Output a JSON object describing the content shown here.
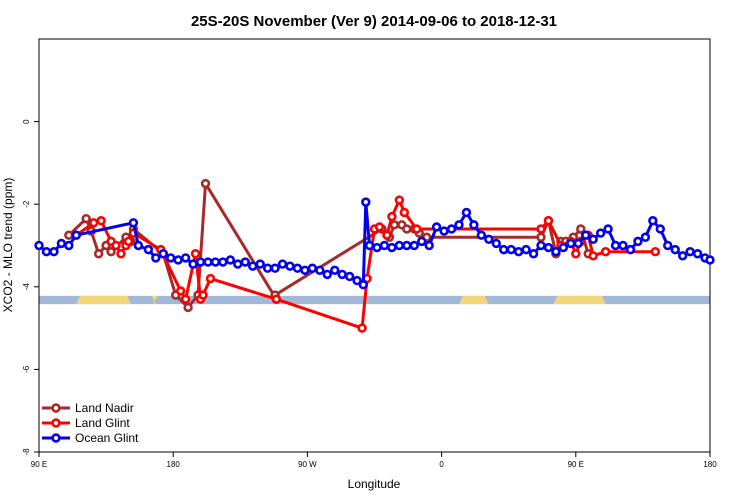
{
  "chart_data": {
    "type": "line",
    "title": "25S-20S November (Ver 9)   2014-09-06 to 2018-12-31",
    "xlabel": "Longitude",
    "ylabel": "XCO2 - MLO trend (ppm)",
    "xlim": [
      -90,
      180
    ],
    "ylim": [
      -8,
      2
    ],
    "x_ticks": [
      {
        "value": -90,
        "label": "90 E"
      },
      {
        "value": -36,
        "label": "180"
      },
      {
        "value": 18,
        "label": "90 W"
      },
      {
        "value": 72,
        "label": "0"
      },
      {
        "value": 126,
        "label": "90 E"
      },
      {
        "value": 180,
        "label": "180"
      }
    ],
    "y_ticks": [
      {
        "value": 0,
        "label": "0"
      },
      {
        "value": -2,
        "label": "-2"
      },
      {
        "value": -4,
        "label": "-4"
      },
      {
        "value": -6,
        "label": "-6"
      },
      {
        "value": -8,
        "label": "-8"
      }
    ],
    "grid": false,
    "legend_position": "bottom-left",
    "land_ocean_strip": {
      "y_range": [
        -4.42,
        -4.22
      ],
      "ocean_color": "#a3b8d8",
      "land_color": "#f5d57a",
      "land_segments": [
        [
          -75,
          -53
        ],
        [
          -44,
          -43
        ],
        [
          79,
          91
        ],
        [
          117,
          138
        ]
      ]
    },
    "series": [
      {
        "name": "Land Nadir",
        "color": "#a52a2a",
        "x": [
          -78,
          -71,
          -69,
          -66,
          -63,
          -61,
          -55,
          -53,
          -52,
          -40,
          -35,
          -30,
          -26,
          -23,
          5.5,
          5,
          48,
          51,
          53,
          56,
          58,
          61,
          63,
          66,
          112,
          115,
          118,
          120,
          122,
          125,
          128,
          131
        ],
        "y": [
          -2.75,
          -2.35,
          -2.65,
          -3.2,
          -3.0,
          -3.15,
          -2.8,
          -2.9,
          -2.6,
          -3.2,
          -4.2,
          -4.5,
          -4.2,
          -1.5,
          -4.3,
          -4.2,
          -2.6,
          -2.8,
          -2.5,
          -2.5,
          -2.6,
          -2.6,
          -2.7,
          -2.8,
          -2.8,
          -2.4,
          -3.2,
          -2.9,
          -2.9,
          -2.8,
          -2.6,
          -3.2
        ]
      },
      {
        "name": "Land Glint",
        "color": "#ff0000",
        "x": [
          -75,
          -68,
          -65,
          -61,
          -59,
          -57,
          -55,
          -54,
          -52,
          -41,
          -33,
          -31,
          -27,
          -25,
          -24,
          -21,
          5.5,
          40,
          42,
          45,
          47,
          50,
          52,
          55,
          57,
          62,
          112,
          115,
          120,
          124,
          126,
          128,
          131,
          133,
          138,
          158
        ],
        "y": [
          -2.75,
          -2.45,
          -2.4,
          -2.9,
          -3.0,
          -3.2,
          -3.0,
          -2.9,
          -2.7,
          -3.1,
          -4.1,
          -4.3,
          -3.2,
          -4.3,
          -4.2,
          -3.8,
          -4.3,
          -5.0,
          -3.8,
          -2.6,
          -2.55,
          -2.75,
          -2.3,
          -1.9,
          -2.2,
          -2.6,
          -2.6,
          -2.4,
          -3.0,
          -2.9,
          -3.2,
          -2.9,
          -2.75,
          -3.25,
          -3.15,
          -3.15
        ]
      },
      {
        "name": "Ocean Glint",
        "color": "#0000ee",
        "x": [
          -90,
          -87,
          -84,
          -81,
          -78,
          -75,
          -52,
          -50,
          -46,
          -43,
          -40,
          -37,
          -34,
          -31,
          -28,
          -25,
          -22,
          -19,
          -16,
          -13,
          -10,
          -7,
          -4,
          -1,
          2,
          5,
          8,
          11,
          14,
          17,
          20,
          23,
          26,
          29,
          32,
          35,
          38,
          40.5,
          41.5,
          43,
          46,
          49,
          52,
          55,
          58,
          61,
          64,
          67,
          70,
          73,
          76,
          79,
          82,
          85,
          88,
          91,
          94,
          97,
          100,
          103,
          106,
          109,
          112,
          115,
          118,
          121,
          124,
          127,
          130,
          133,
          136,
          139,
          142,
          145,
          148,
          151,
          154,
          157,
          160,
          163,
          166,
          169,
          172,
          175,
          178,
          180
        ],
        "y": [
          -3.0,
          -3.15,
          -3.15,
          -2.95,
          -3.0,
          -2.75,
          -2.45,
          -3.0,
          -3.1,
          -3.3,
          -3.2,
          -3.3,
          -3.35,
          -3.3,
          -3.45,
          -3.4,
          -3.4,
          -3.4,
          -3.4,
          -3.35,
          -3.45,
          -3.4,
          -3.5,
          -3.45,
          -3.55,
          -3.55,
          -3.45,
          -3.5,
          -3.55,
          -3.6,
          -3.55,
          -3.6,
          -3.7,
          -3.6,
          -3.7,
          -3.75,
          -3.85,
          -3.95,
          -1.95,
          -3.0,
          -3.05,
          -3.0,
          -3.05,
          -3.0,
          -3.0,
          -3.0,
          -2.9,
          -3.0,
          -2.55,
          -2.65,
          -2.6,
          -2.5,
          -2.2,
          -2.5,
          -2.75,
          -2.85,
          -2.95,
          -3.1,
          -3.1,
          -3.15,
          -3.1,
          -3.2,
          -3.0,
          -3.05,
          -3.15,
          -3.05,
          -2.95,
          -2.95,
          -2.75,
          -2.85,
          -2.7,
          -2.6,
          -3.0,
          -3.0,
          -3.1,
          -2.9,
          -2.8,
          -2.4,
          -2.6,
          -3.0,
          -3.1,
          -3.25,
          -3.15,
          -3.2,
          -3.3,
          -3.35
        ]
      }
    ]
  }
}
